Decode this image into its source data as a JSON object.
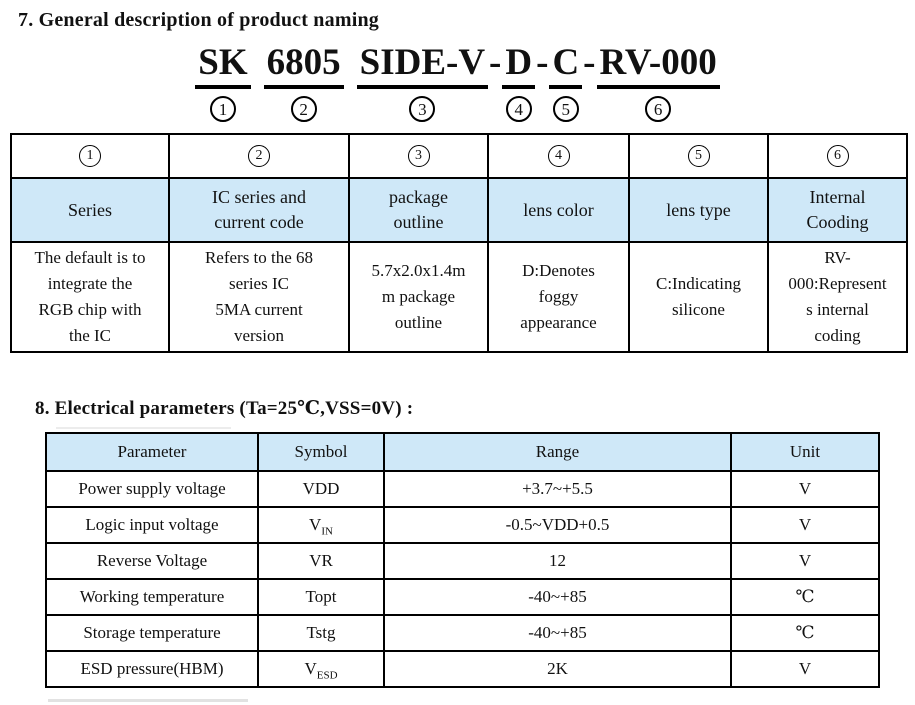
{
  "colors": {
    "header_blue": "#cfe8f8",
    "border": "#000000",
    "text": "#111111"
  },
  "section7": {
    "heading": "7. General description of product naming"
  },
  "naming": {
    "parts": [
      {
        "type": "seg",
        "text": "SK",
        "num": "1"
      },
      {
        "type": "space"
      },
      {
        "type": "seg",
        "text": "6805",
        "num": "2"
      },
      {
        "type": "space"
      },
      {
        "type": "seg",
        "text": "SIDE-V",
        "num": "3"
      },
      {
        "type": "dash",
        "text": "-"
      },
      {
        "type": "seg",
        "text": "D",
        "num": "4"
      },
      {
        "type": "dash",
        "text": "-"
      },
      {
        "type": "seg",
        "text": "C",
        "num": "5"
      },
      {
        "type": "dash",
        "text": "-"
      },
      {
        "type": "seg",
        "text": "RV-000",
        "num": "6"
      }
    ]
  },
  "naming_table": {
    "header_nums": [
      "1",
      "2",
      "3",
      "4",
      "5",
      "6"
    ],
    "titles": [
      [
        "Series"
      ],
      [
        "IC series and",
        "current code"
      ],
      [
        "package",
        "outline"
      ],
      [
        "lens color"
      ],
      [
        "lens type"
      ],
      [
        "Internal",
        "Cooding"
      ]
    ],
    "descriptions": [
      [
        "The default is to",
        "integrate the",
        "RGB chip with",
        "the IC"
      ],
      [
        "Refers to the 68",
        "series IC",
        "5MA current",
        "version"
      ],
      [
        "5.7x2.0x1.4m",
        "m package",
        "outline"
      ],
      [
        "D:Denotes",
        "foggy",
        "appearance"
      ],
      [
        "C:Indicating",
        "silicone"
      ],
      [
        "RV-",
        "000:Represent",
        "s internal",
        "coding"
      ]
    ]
  },
  "section8": {
    "heading": "8. Electrical parameters (Ta=25℃,VSS=0V) :"
  },
  "electrical_table": {
    "headers": [
      "Parameter",
      "Symbol",
      "Range",
      "Unit"
    ],
    "rows": [
      {
        "parameter": "Power supply voltage",
        "symbol": "VDD",
        "symbol_sub": "",
        "range": "+3.7~+5.5",
        "unit": "V"
      },
      {
        "parameter": "Logic input voltage",
        "symbol": "V",
        "symbol_sub": "IN",
        "range": "-0.5~VDD+0.5",
        "unit": "V"
      },
      {
        "parameter": "Reverse Voltage",
        "symbol": "VR",
        "symbol_sub": "",
        "range": "12",
        "unit": "V"
      },
      {
        "parameter": "Working temperature",
        "symbol": "Topt",
        "symbol_sub": "",
        "range": "-40~+85",
        "unit": "℃"
      },
      {
        "parameter": "Storage temperature",
        "symbol": "Tstg",
        "symbol_sub": "",
        "range": "-40~+85",
        "unit": "℃"
      },
      {
        "parameter": "ESD pressure(HBM)",
        "symbol": "V",
        "symbol_sub": "ESD",
        "range": "2K",
        "unit": "V"
      }
    ]
  }
}
